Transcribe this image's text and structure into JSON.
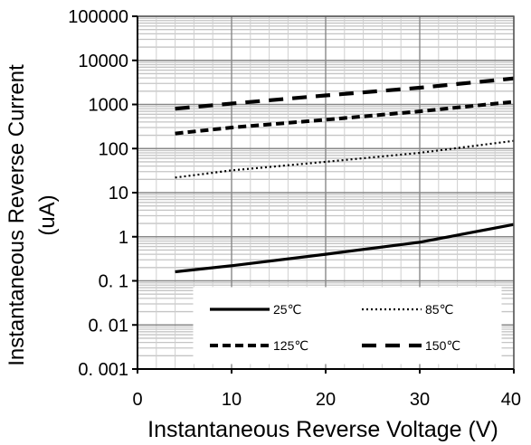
{
  "chart_data": {
    "type": "line",
    "xlabel": "Instantaneous Reverse Voltage (V)",
    "ylabel_lines": [
      "Instantaneous Reverse Current",
      "(uA)"
    ],
    "xlim": [
      0,
      40
    ],
    "ylim": [
      0.001,
      100000
    ],
    "yscale": "log",
    "grid": true,
    "legend_position": "bottom-right",
    "x_ticks": [
      {
        "value": 0,
        "label": "0"
      },
      {
        "value": 10,
        "label": "10"
      },
      {
        "value": 20,
        "label": "20"
      },
      {
        "value": 30,
        "label": "30"
      },
      {
        "value": 40,
        "label": "40"
      }
    ],
    "y_ticks": [
      {
        "value": 100000,
        "label": "100000"
      },
      {
        "value": 10000,
        "label": "10000"
      },
      {
        "value": 1000,
        "label": "1000"
      },
      {
        "value": 100,
        "label": "100"
      },
      {
        "value": 10,
        "label": "10"
      },
      {
        "value": 1,
        "label": "1"
      },
      {
        "value": 0.1,
        "label": "0. 1"
      },
      {
        "value": 0.01,
        "label": "0. 01"
      },
      {
        "value": 0.001,
        "label": "0. 001"
      }
    ],
    "series": [
      {
        "name": "25℃",
        "style": "solid",
        "x": [
          4,
          10,
          20,
          30,
          40
        ],
        "y": [
          0.16,
          0.22,
          0.4,
          0.75,
          1.9
        ]
      },
      {
        "name": "85℃",
        "style": "dotted",
        "x": [
          4,
          10,
          20,
          30,
          40
        ],
        "y": [
          22,
          32,
          50,
          80,
          150
        ]
      },
      {
        "name": "125℃",
        "style": "short-dash",
        "x": [
          4,
          10,
          20,
          30,
          40
        ],
        "y": [
          220,
          300,
          450,
          700,
          1150
        ]
      },
      {
        "name": "150℃",
        "style": "long-dash",
        "x": [
          4,
          10,
          20,
          30,
          40
        ],
        "y": [
          800,
          1050,
          1600,
          2400,
          3900
        ]
      }
    ]
  }
}
